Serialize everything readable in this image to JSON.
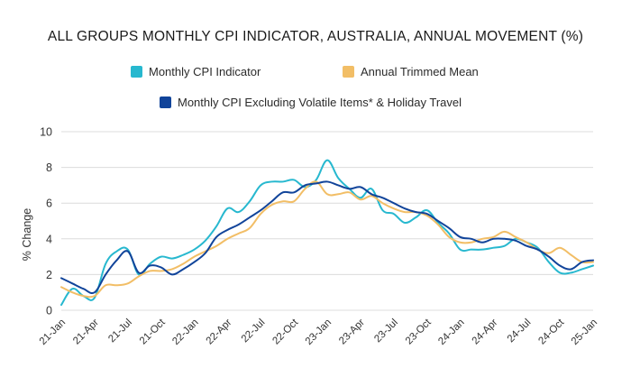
{
  "chart_data": {
    "type": "line",
    "title": "ALL GROUPS MONTHLY CPI INDICATOR, AUSTRALIA, ANNUAL MOVEMENT (%)",
    "ylabel": "% Change",
    "xlabel": "",
    "ylim": [
      0,
      10
    ],
    "yticks": [
      "0",
      "2",
      "4",
      "6",
      "8",
      "10"
    ],
    "yticks_values": [
      0,
      2,
      4,
      6,
      8,
      10
    ],
    "grid": true,
    "legend": "top-center",
    "x_tick_labels": [
      "21-Jan",
      "21-Apr",
      "21-Jul",
      "21-Oct",
      "22-Jan",
      "22-Apr",
      "22-Jul",
      "22-Oct",
      "23-Jan",
      "23-Apr",
      "23-Jul",
      "23-Oct",
      "24-Jan",
      "24-Apr",
      "24-Jul",
      "24-Oct",
      "25-Jan"
    ],
    "x_tick_index": [
      0,
      3,
      6,
      9,
      12,
      15,
      18,
      21,
      24,
      27,
      30,
      33,
      36,
      39,
      42,
      45,
      48
    ],
    "series": [
      {
        "name": "Monthly CPI Indicator",
        "color": "#27B8CF",
        "values": [
          0.3,
          1.2,
          0.8,
          0.7,
          2.6,
          3.3,
          3.4,
          2.0,
          2.6,
          3.0,
          2.9,
          3.1,
          3.4,
          3.9,
          4.7,
          5.7,
          5.5,
          6.1,
          7.0,
          7.2,
          7.2,
          7.3,
          6.9,
          7.3,
          8.4,
          7.4,
          6.8,
          6.3,
          6.8,
          5.6,
          5.4,
          4.9,
          5.2,
          5.6,
          4.9,
          4.3,
          3.4,
          3.4,
          3.4,
          3.5,
          3.6,
          4.0,
          3.8,
          3.5,
          2.7,
          2.1,
          2.1,
          2.3,
          2.5
        ]
      },
      {
        "name": "Annual Trimmed Mean",
        "color": "#F2BE66",
        "values": [
          1.3,
          1.0,
          0.8,
          0.8,
          1.4,
          1.4,
          1.5,
          1.9,
          2.2,
          2.2,
          2.3,
          2.6,
          3.0,
          3.3,
          3.6,
          4.0,
          4.3,
          4.6,
          5.4,
          5.9,
          6.1,
          6.1,
          6.8,
          7.2,
          6.5,
          6.5,
          6.6,
          6.2,
          6.4,
          6.0,
          5.7,
          5.5,
          5.5,
          5.3,
          4.8,
          4.1,
          3.8,
          3.8,
          4.0,
          4.1,
          4.4,
          4.1,
          3.8,
          3.4,
          3.2,
          3.5,
          3.1,
          2.7,
          2.7
        ]
      },
      {
        "name": "Monthly CPI Excluding Volatile Items* & Holiday Travel",
        "color": "#11449A",
        "values": [
          1.8,
          1.5,
          1.2,
          1.0,
          2.0,
          2.8,
          3.3,
          2.1,
          2.5,
          2.4,
          2.0,
          2.3,
          2.7,
          3.2,
          4.1,
          4.5,
          4.8,
          5.2,
          5.6,
          6.1,
          6.6,
          6.6,
          7.0,
          7.1,
          7.2,
          7.0,
          6.8,
          6.9,
          6.5,
          6.3,
          6.0,
          5.7,
          5.5,
          5.4,
          5.0,
          4.6,
          4.1,
          4.0,
          3.8,
          4.0,
          4.0,
          3.9,
          3.6,
          3.4,
          3.0,
          2.5,
          2.3,
          2.7,
          2.8
        ]
      }
    ]
  }
}
